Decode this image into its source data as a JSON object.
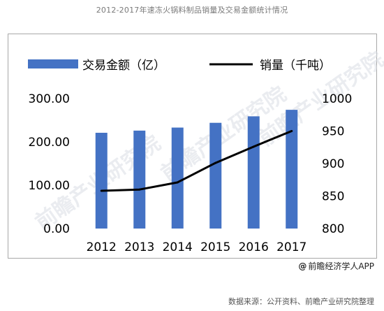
{
  "page": {
    "title": "2012-2017年速冻火锅料制品销量及交易金额统计情况",
    "credit_at": "@",
    "credit": "前瞻经济学人APP",
    "source": "数据来源：公开资料、前瞻产业研究院整理"
  },
  "colors": {
    "bar": "#4472c4",
    "line": "#000000"
  },
  "chart_data": {
    "type": "bar+line",
    "categories": [
      "2012",
      "2013",
      "2014",
      "2015",
      "2016",
      "2017"
    ],
    "series": [
      {
        "name": "交易金额（亿）",
        "type": "bar",
        "axis": "left",
        "values": [
          221,
          226,
          233,
          244,
          259,
          274
        ]
      },
      {
        "name": "销量（千吨）",
        "type": "line",
        "axis": "right",
        "values": [
          858,
          860,
          871,
          901,
          926,
          950
        ]
      }
    ],
    "left_axis": {
      "ticks": [
        "300.00",
        "200.00",
        "100.00",
        "0.00"
      ],
      "ylim": [
        0,
        300
      ]
    },
    "right_axis": {
      "ticks": [
        "1000",
        "950",
        "900",
        "850",
        "800"
      ],
      "ylim": [
        800,
        1000
      ]
    },
    "legend_position": "top",
    "grid": false
  }
}
